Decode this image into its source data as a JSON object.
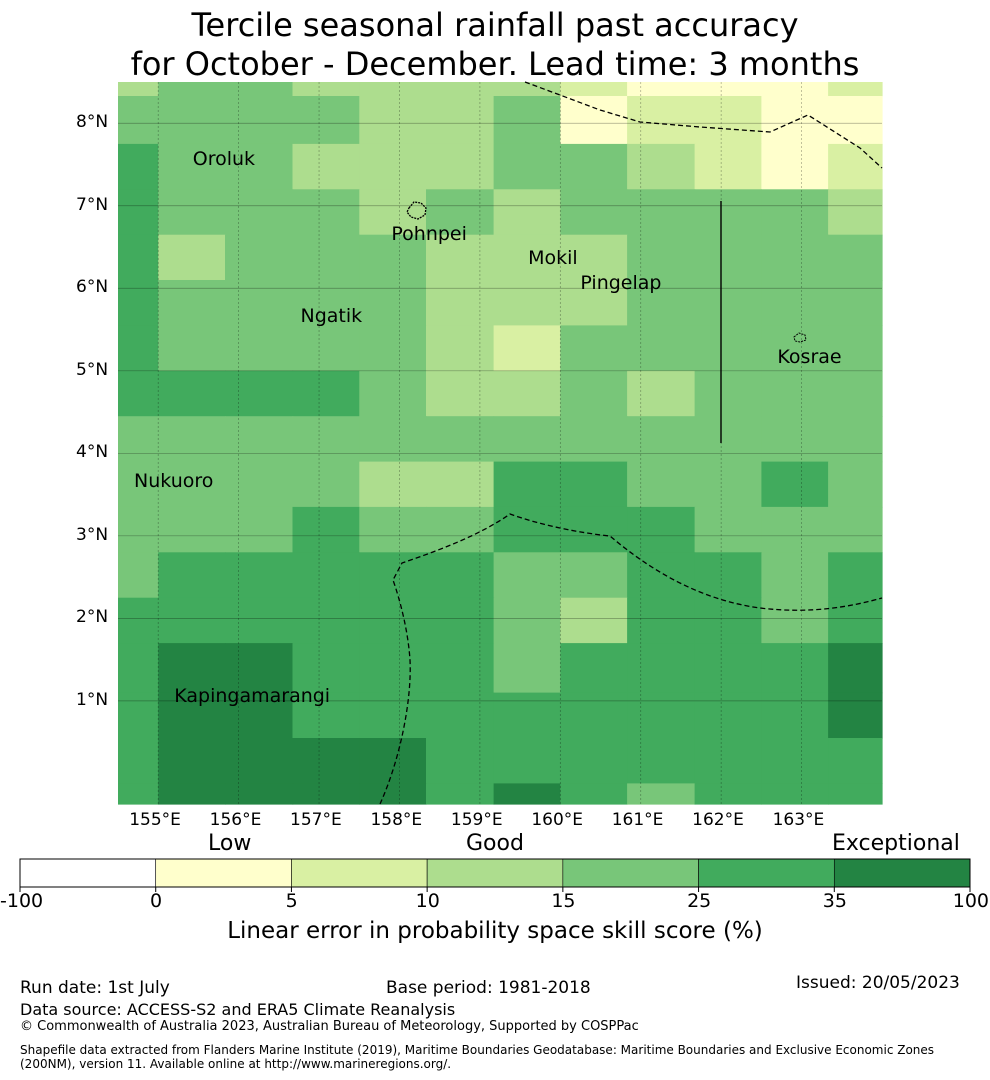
{
  "title": {
    "line1": "Tercile seasonal rainfall past accuracy",
    "line2": "for October - December. Lead time: 3 months"
  },
  "map": {
    "lon_range": [
      154.5,
      164.0
    ],
    "lat_range": [
      -0.25,
      8.5
    ],
    "lon_ticks": [
      155,
      156,
      157,
      158,
      159,
      160,
      161,
      162,
      163
    ],
    "lat_ticks": [
      1,
      2,
      3,
      4,
      5,
      6,
      7,
      8
    ],
    "lon_tick_labels": [
      "155°E",
      "156°E",
      "157°E",
      "158°E",
      "159°E",
      "160°E",
      "161°E",
      "162°E",
      "163°E"
    ],
    "lat_tick_labels": [
      "1°N",
      "2°N",
      "3°N",
      "4°N",
      "5°N",
      "6°N",
      "7°N",
      "8°N"
    ],
    "cell_columns_lon": [
      154.5,
      155.0,
      155.83,
      156.67,
      157.5,
      158.33,
      159.17,
      160.0,
      160.83,
      161.67,
      162.5,
      163.33,
      164.0
    ],
    "cell_rows_lat": [
      8.5,
      8.33,
      7.75,
      7.2,
      6.65,
      6.1,
      5.55,
      5.0,
      4.45,
      3.9,
      3.35,
      2.8,
      2.25,
      1.7,
      1.1,
      0.55,
      0.0,
      -0.25
    ],
    "skill_grid": [
      [
        3,
        4,
        4,
        3,
        3,
        3,
        3,
        2,
        1,
        1,
        1,
        2,
        2
      ],
      [
        4,
        4,
        4,
        4,
        3,
        3,
        4,
        1,
        2,
        2,
        1,
        1,
        2
      ],
      [
        5,
        4,
        4,
        3,
        3,
        3,
        4,
        4,
        3,
        2,
        1,
        2,
        2
      ],
      [
        5,
        4,
        4,
        4,
        3,
        4,
        3,
        4,
        4,
        4,
        4,
        3,
        3
      ],
      [
        5,
        3,
        4,
        4,
        4,
        3,
        3,
        3,
        4,
        4,
        4,
        4,
        4
      ],
      [
        5,
        4,
        4,
        4,
        4,
        3,
        3,
        3,
        4,
        4,
        4,
        4,
        4
      ],
      [
        5,
        4,
        4,
        4,
        4,
        3,
        2,
        4,
        4,
        4,
        4,
        4,
        4
      ],
      [
        5,
        5,
        5,
        5,
        4,
        3,
        3,
        4,
        3,
        4,
        4,
        4,
        4
      ],
      [
        4,
        4,
        4,
        4,
        4,
        4,
        4,
        4,
        4,
        4,
        4,
        4,
        4
      ],
      [
        4,
        4,
        4,
        4,
        3,
        3,
        5,
        5,
        4,
        4,
        5,
        4,
        4
      ],
      [
        4,
        4,
        4,
        5,
        4,
        4,
        5,
        5,
        5,
        4,
        4,
        4,
        4
      ],
      [
        4,
        5,
        5,
        5,
        5,
        5,
        4,
        4,
        5,
        5,
        4,
        5,
        5
      ],
      [
        5,
        5,
        5,
        5,
        5,
        5,
        4,
        3,
        5,
        5,
        4,
        5,
        5
      ],
      [
        5,
        6,
        6,
        5,
        5,
        5,
        4,
        5,
        5,
        5,
        5,
        6,
        5
      ],
      [
        5,
        6,
        6,
        5,
        5,
        5,
        5,
        5,
        5,
        5,
        5,
        6,
        6
      ],
      [
        5,
        6,
        6,
        6,
        6,
        5,
        5,
        5,
        5,
        5,
        5,
        5,
        6
      ],
      [
        5,
        6,
        6,
        6,
        6,
        5,
        6,
        5,
        4,
        5,
        5,
        5,
        6
      ],
      [
        5,
        6,
        6,
        6,
        6,
        6,
        6,
        5,
        5,
        5,
        5,
        5,
        6
      ]
    ],
    "islands": [
      {
        "name": "Oroluk",
        "lon": 155.33,
        "lat": 7.55
      },
      {
        "name": "Pohnpei",
        "lon": 157.8,
        "lat": 6.65
      },
      {
        "name": "Mokil",
        "lon": 159.5,
        "lat": 6.35
      },
      {
        "name": "Pingelap",
        "lon": 160.15,
        "lat": 6.05
      },
      {
        "name": "Ngatik",
        "lon": 156.67,
        "lat": 5.65
      },
      {
        "name": "Kosrae",
        "lon": 162.6,
        "lat": 5.15
      },
      {
        "name": "Nukuoro",
        "lon": 154.6,
        "lat": 3.65
      },
      {
        "name": "Kapingamarangi",
        "lon": 155.1,
        "lat": 1.05
      }
    ]
  },
  "legend": {
    "category_labels": [
      "Low",
      "Good",
      "Exceptional"
    ],
    "tick_labels": [
      "-100",
      "0",
      "5",
      "10",
      "15",
      "25",
      "35",
      "100"
    ],
    "colors": [
      "#ffffff",
      "#ffffcc",
      "#d9f0a3",
      "#addd8e",
      "#78c679",
      "#41ab5d",
      "#238443"
    ],
    "title": "Linear error in probability space skill score (%)"
  },
  "footer": {
    "run_date": "Run date: 1st July",
    "base_period": "Base period: 1981-2018",
    "issued": "Issued: 20/05/2023",
    "data_source": "Data source: ACCESS-S2 and ERA5 Climate Reanalysis",
    "copyright": "© Commonwealth of Australia 2023, Australian Bureau of Meteorology, Supported by COSPPac",
    "shapefile_line1": "Shapefile data extracted from Flanders Marine Institute (2019), Maritime Boundaries Geodatabase: Maritime Boundaries and Exclusive Economic Zones",
    "shapefile_line2": "(200NM), version 11. Available online at http://www.marineregions.org/."
  }
}
